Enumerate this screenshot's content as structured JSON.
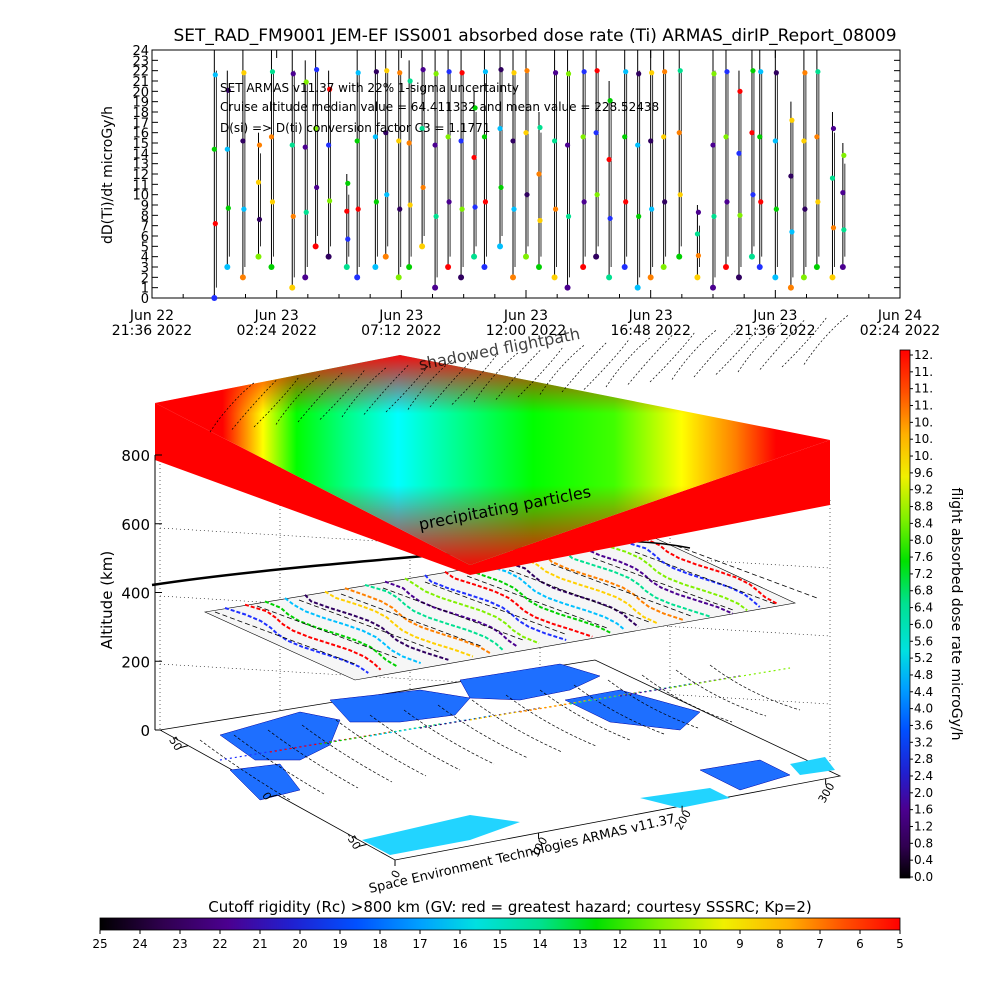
{
  "title": "SET_RAD_FM9001  JEM-EF ISS001 absorbed dose rate (Ti) ARMAS_dirIP_Report_08009",
  "footer_credit": "Space Environment Technologies ARMAS v11.37",
  "bottom_colorbar_title": "Cutoff rigidity (Rc) >800 km (GV: red = greatest hazard; courtesy SSSRC; Kp=2)",
  "bottom_colorbar_ticks": [
    "25",
    "24",
    "23",
    "22",
    "21",
    "20",
    "19",
    "18",
    "17",
    "16",
    "15",
    "14",
    "13",
    "12",
    "11",
    "10",
    "9",
    "8",
    "7",
    "6",
    "5"
  ],
  "right_colorbar_label": "flight absorbed dose rate microGy/h",
  "right_colorbar_ticks": [
    "12.",
    "11.",
    "11.",
    "11.",
    "10.",
    "10.",
    "10.",
    "9.6",
    "9.2",
    "8.8",
    "8.4",
    "8.0",
    "7.6",
    "7.2",
    "6.8",
    "6.4",
    "6.0",
    "5.6",
    "5.2",
    "4.8",
    "4.4",
    "4.0",
    "3.6",
    "3.2",
    "2.8",
    "2.4",
    "2.0",
    "1.6",
    "1.2",
    "0.8",
    "0.4",
    "0.0"
  ],
  "surface_labels": {
    "upper": "shadowed flightpath",
    "lower": "precipitating particles"
  },
  "altitude_axis": {
    "label": "Altitude (km)",
    "ticks": [
      "0",
      "200",
      "400",
      "600",
      "800"
    ]
  },
  "lat_ticks": [
    "50",
    "0",
    "-50"
  ],
  "lon_ticks": [
    "0",
    "100",
    "200",
    "300"
  ],
  "colors": {
    "hazard_red": "#ff0000",
    "low_cyan": "#00ffff",
    "mid_green": "#00ff00",
    "ocean_blue": "#1e6fff"
  },
  "chart_data": {
    "type": "line",
    "xlabel": "",
    "ylabel": "dD(Ti)/dt microGy/h",
    "ylim": [
      0,
      24
    ],
    "yticks": [
      "0",
      "1",
      "2",
      "3",
      "4",
      "5",
      "6",
      "7",
      "8",
      "9",
      "10",
      "11",
      "12",
      "13",
      "14",
      "15",
      "16",
      "17",
      "18",
      "19",
      "20",
      "21",
      "22",
      "23",
      "24"
    ],
    "xticks": [
      {
        "line1": "Jun 22",
        "line2": "21:36 2022"
      },
      {
        "line1": "Jun 23",
        "line2": "02:24 2022"
      },
      {
        "line1": "Jun 23",
        "line2": "07:12 2022"
      },
      {
        "line1": "Jun 23",
        "line2": "12:00 2022"
      },
      {
        "line1": "Jun 23",
        "line2": "16:48 2022"
      },
      {
        "line1": "Jun 23",
        "line2": "21:36 2022"
      },
      {
        "line1": "Jun 24",
        "line2": "02:24 2022"
      }
    ],
    "annotations": [
      "SET ARMAS v11.37 with 22% 1-sigma uncertainty",
      "Cruise altitude median value = 64.411332 and mean value = 228.52438",
      "D(si) => D(ti) conversion factor C3 = 1.1771"
    ],
    "spikes_hours": [
      2.4,
      2.9,
      3.5,
      4.1,
      4.6,
      5.4,
      5.9,
      6.3,
      6.8,
      7.5,
      7.9,
      8.6,
      9.0,
      9.5,
      9.9,
      10.4,
      10.9,
      11.4,
      11.9,
      12.4,
      12.8,
      13.4,
      13.9,
      14.4,
      14.9,
      15.5,
      16.0,
      16.6,
      17.1,
      17.6,
      18.2,
      18.7,
      19.2,
      19.7,
      20.3,
      21.0,
      21.6,
      22.1,
      22.6,
      23.1,
      23.4,
      24.0,
      24.6,
      25.1,
      25.6,
      26.2,
      26.6
    ],
    "spike_peaks": [
      24,
      22,
      24,
      16,
      24,
      24,
      23,
      24,
      22,
      12,
      24,
      24,
      24,
      24,
      23,
      24,
      24,
      24,
      24,
      20,
      24,
      24,
      24,
      24,
      18,
      24,
      24,
      24,
      24,
      21,
      24,
      24,
      24,
      24,
      24,
      9,
      24,
      24,
      22,
      24,
      24,
      24,
      19,
      24,
      24,
      18,
      15
    ],
    "baseline_values": [
      0,
      3,
      2,
      4,
      3,
      1,
      2,
      5,
      4,
      3,
      2,
      3,
      4,
      2,
      3,
      5,
      1,
      3,
      2,
      4,
      3,
      5,
      2,
      4,
      3,
      2,
      1,
      3,
      4,
      2,
      3,
      1,
      2,
      3,
      4,
      2,
      1,
      3,
      2,
      4,
      3,
      2,
      1,
      2,
      3,
      2,
      3
    ]
  }
}
